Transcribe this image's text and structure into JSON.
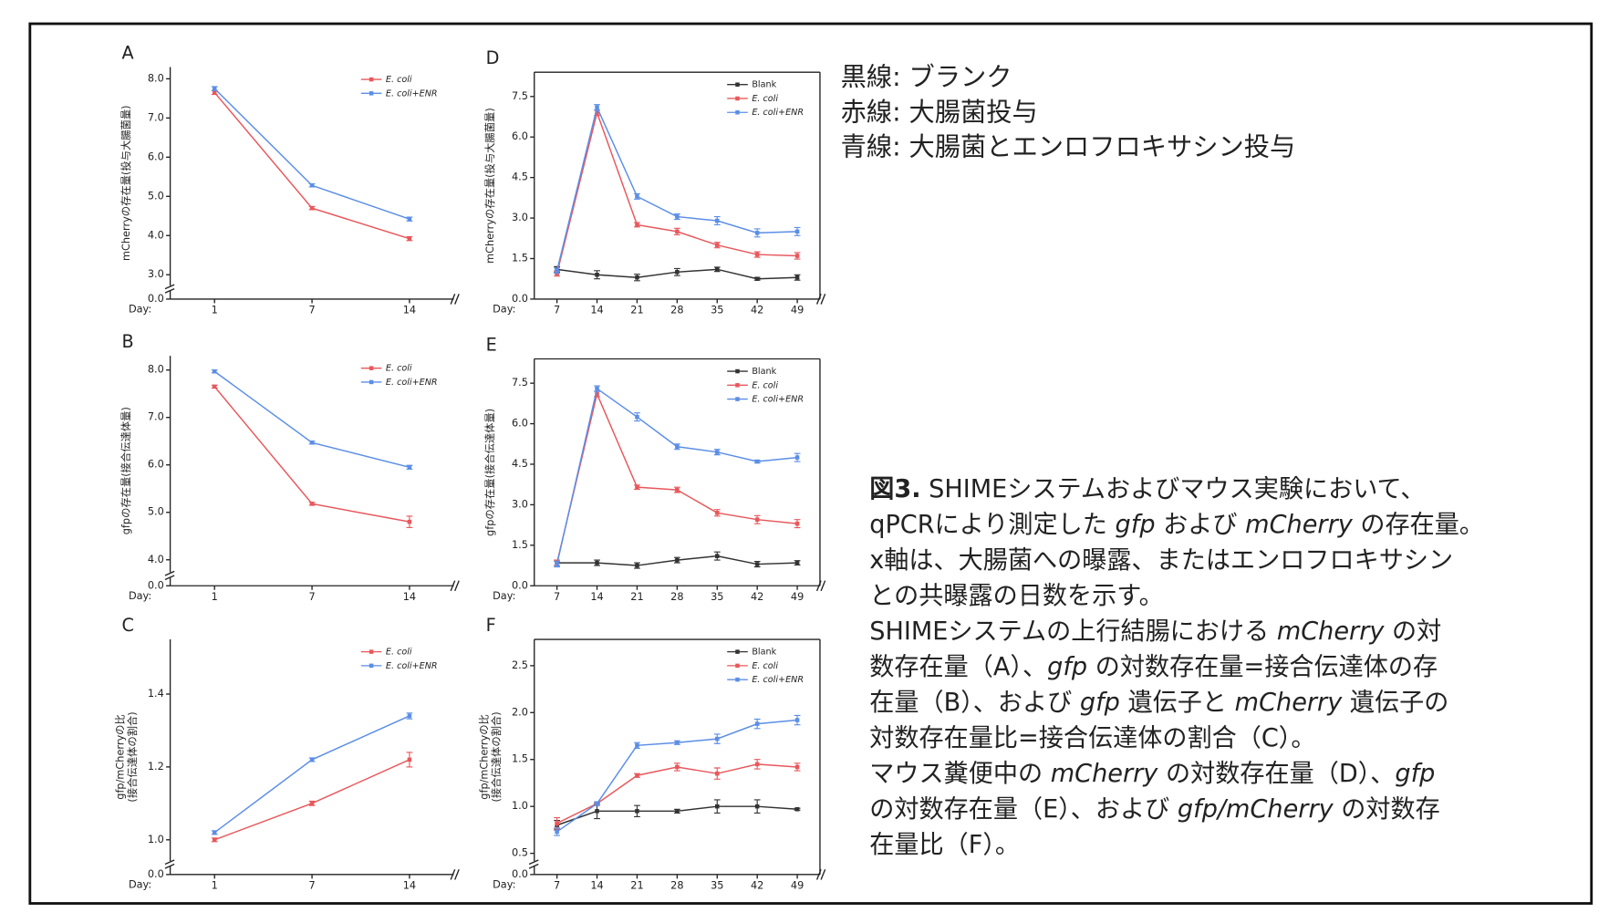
{
  "note": [
    "黒線: ブランク",
    "赤線: 大腸菌投与",
    "青線: 大腸菌とエンロフロキサシン投与"
  ],
  "caption": [
    [
      {
        "text": "図3.",
        "style": "bold"
      },
      {
        "text": " SHIMEシステムおよびマウス実験において、"
      }
    ],
    [
      {
        "text": "qPCRにより測定した "
      },
      {
        "text": "gfp",
        "style": "italic"
      },
      {
        "text": " および "
      },
      {
        "text": "mCherry",
        "style": "italic"
      },
      {
        "text": " の存在量。"
      }
    ],
    [
      {
        "text": "x軸は、大腸菌への曝露、またはエンロフロキサシン"
      }
    ],
    [
      {
        "text": "との共曝露の日数を示す。"
      }
    ],
    [
      {
        "text": "SHIMEシステムの上行結腸における "
      },
      {
        "text": "mCherry",
        "style": "italic"
      },
      {
        "text": " の対"
      }
    ],
    [
      {
        "text": "数存在量（A）、"
      },
      {
        "text": "gfp",
        "style": "italic"
      },
      {
        "text": " の対数存在量=接合伝達体の存"
      }
    ],
    [
      {
        "text": "在量（B）、および "
      },
      {
        "text": "gfp",
        "style": "italic"
      },
      {
        "text": " 遺伝子と "
      },
      {
        "text": "mCherry",
        "style": "italic"
      },
      {
        "text": " 遺伝子の"
      }
    ],
    [
      {
        "text": "対数存在量比=接合伝達体の割合（C）。"
      }
    ],
    [
      {
        "text": "マウス糞便中の "
      },
      {
        "text": "mCherry",
        "style": "italic"
      },
      {
        "text": " の対数存在量（D）、"
      },
      {
        "text": "gfp",
        "style": "italic"
      }
    ],
    [
      {
        "text": "の対数存在量（E）、および "
      },
      {
        "text": "gfp/mCherry",
        "style": "italic"
      },
      {
        "text": " の対数存"
      }
    ],
    [
      {
        "text": "在量比（F）。"
      }
    ]
  ],
  "chart_data": [
    {
      "type": "line",
      "panel": "A",
      "ylabel": [
        "mCherryの存在量(投与大腸菌量)"
      ],
      "xlabel": "Day:",
      "categories": [
        "1",
        "7",
        "14"
      ],
      "frame": "axes",
      "legend": "upper right",
      "ylim": [
        0,
        8.3
      ],
      "ybreak": 2.8,
      "yticks": [
        {
          "value": 0,
          "label": "0.0"
        },
        {
          "value": 3,
          "label": "3.0"
        },
        {
          "value": 4,
          "label": "4.0"
        },
        {
          "value": 5,
          "label": "5.0"
        },
        {
          "value": 6,
          "label": "6.0"
        },
        {
          "value": 7,
          "label": "7.0"
        },
        {
          "value": 8,
          "label": "8.0"
        }
      ],
      "series": [
        {
          "name": "E. coli",
          "italic": true,
          "color": "#e8585c",
          "values": [
            7.65,
            4.7,
            3.92
          ],
          "errors": [
            0.05,
            0.04,
            0.05
          ]
        },
        {
          "name": "E. coli+ENR",
          "italic": true,
          "color": "#5b8ee6",
          "values": [
            7.75,
            5.28,
            4.42
          ],
          "errors": [
            0.05,
            0.04,
            0.05
          ]
        }
      ]
    },
    {
      "type": "line",
      "panel": "B",
      "ylabel": [
        "gfpの存在量(接合伝達体量)"
      ],
      "xlabel": "Day:",
      "categories": [
        "1",
        "7",
        "14"
      ],
      "frame": "axes",
      "legend": "upper right",
      "ylim": [
        0,
        8.3
      ],
      "ybreak": 3.8,
      "yticks": [
        {
          "value": 0,
          "label": "0.0"
        },
        {
          "value": 4,
          "label": "4.0"
        },
        {
          "value": 5,
          "label": "5.0"
        },
        {
          "value": 6,
          "label": "6.0"
        },
        {
          "value": 7,
          "label": "7.0"
        },
        {
          "value": 8,
          "label": "8.0"
        }
      ],
      "series": [
        {
          "name": "E. coli",
          "italic": true,
          "color": "#e8585c",
          "values": [
            7.65,
            5.18,
            4.8
          ],
          "errors": [
            0.03,
            0.03,
            0.12
          ]
        },
        {
          "name": "E. coli+ENR",
          "italic": true,
          "color": "#5b8ee6",
          "values": [
            7.97,
            6.47,
            5.95
          ],
          "errors": [
            0.03,
            0.03,
            0.04
          ]
        }
      ]
    },
    {
      "type": "line",
      "panel": "C",
      "ylabel": [
        "gfp/mCherryの比",
        "(接合伝達体の割合)"
      ],
      "xlabel": "Day:",
      "categories": [
        "1",
        "7",
        "14"
      ],
      "frame": "axes",
      "legend": "upper right",
      "ylim": [
        0,
        1.55
      ],
      "ybreak": 0.95,
      "yticks": [
        {
          "value": 0,
          "label": "0.0"
        },
        {
          "value": 1,
          "label": "1.0"
        },
        {
          "value": 1.2,
          "label": "1.2"
        },
        {
          "value": 1.4,
          "label": "1.4"
        }
      ],
      "series": [
        {
          "name": "E. coli",
          "italic": true,
          "color": "#e8585c",
          "values": [
            1.0,
            1.1,
            1.22
          ],
          "errors": [
            0.005,
            0.006,
            0.02
          ]
        },
        {
          "name": "E. coli+ENR",
          "italic": true,
          "color": "#5b8ee6",
          "values": [
            1.02,
            1.22,
            1.34
          ],
          "errors": [
            0.005,
            0.005,
            0.008
          ]
        }
      ]
    },
    {
      "type": "line",
      "panel": "D",
      "ylabel": [
        "mCherryの存在量(投与大腸菌量)"
      ],
      "xlabel": "Day:",
      "categories": [
        "7",
        "14",
        "21",
        "28",
        "35",
        "42",
        "49"
      ],
      "frame": "box",
      "legend": "upper right",
      "ylim": [
        0,
        8.4
      ],
      "yticks": [
        {
          "value": 0,
          "label": "0.0"
        },
        1.5,
        {
          "value": 3,
          "label": "3.0"
        },
        4.5,
        {
          "value": 6,
          "label": "6.0"
        },
        7.5
      ],
      "series": [
        {
          "name": "Blank",
          "italic": false,
          "color": "#333333",
          "values": [
            1.1,
            0.9,
            0.8,
            1.0,
            1.1,
            0.75,
            0.8
          ],
          "errors": [
            0.1,
            0.15,
            0.12,
            0.13,
            0.08,
            0.05,
            0.1
          ]
        },
        {
          "name": "E. coli",
          "italic": true,
          "color": "#e8585c",
          "values": [
            0.95,
            6.9,
            2.75,
            2.5,
            2.0,
            1.65,
            1.6
          ],
          "errors": [
            0.1,
            0.1,
            0.08,
            0.12,
            0.1,
            0.1,
            0.12
          ]
        },
        {
          "name": "E. coli+ENR",
          "italic": true,
          "color": "#5b8ee6",
          "values": [
            1.05,
            7.1,
            3.8,
            3.05,
            2.9,
            2.45,
            2.5
          ],
          "errors": [
            0.1,
            0.1,
            0.1,
            0.1,
            0.15,
            0.15,
            0.15
          ]
        }
      ]
    },
    {
      "type": "line",
      "panel": "E",
      "ylabel": [
        "gfpの存在量(接合伝達体量)"
      ],
      "xlabel": "Day:",
      "categories": [
        "7",
        "14",
        "21",
        "28",
        "35",
        "42",
        "49"
      ],
      "frame": "box",
      "legend": "upper right",
      "ylim": [
        0,
        8.4
      ],
      "yticks": [
        {
          "value": 0,
          "label": "0.0"
        },
        1.5,
        {
          "value": 3,
          "label": "3.0"
        },
        4.5,
        {
          "value": 6,
          "label": "6.0"
        },
        7.5
      ],
      "series": [
        {
          "name": "Blank",
          "italic": false,
          "color": "#333333",
          "values": [
            0.85,
            0.85,
            0.75,
            0.95,
            1.1,
            0.8,
            0.85
          ],
          "errors": [
            0.1,
            0.1,
            0.1,
            0.1,
            0.15,
            0.1,
            0.08
          ]
        },
        {
          "name": "E. coli",
          "italic": true,
          "color": "#e8585c",
          "values": [
            0.85,
            7.1,
            3.65,
            3.55,
            2.7,
            2.45,
            2.3
          ],
          "errors": [
            0.1,
            0.1,
            0.08,
            0.1,
            0.12,
            0.15,
            0.15
          ]
        },
        {
          "name": "E. coli+ENR",
          "italic": true,
          "color": "#5b8ee6",
          "values": [
            0.8,
            7.3,
            6.25,
            5.15,
            4.95,
            4.6,
            4.75
          ],
          "errors": [
            0.1,
            0.1,
            0.15,
            0.1,
            0.1,
            0.05,
            0.15
          ]
        }
      ]
    },
    {
      "type": "line",
      "panel": "F",
      "ylabel": [
        "gfp/mCherryの比",
        "(接合伝達体の割合)"
      ],
      "xlabel": "Day:",
      "categories": [
        "7",
        "14",
        "21",
        "28",
        "35",
        "42",
        "49"
      ],
      "frame": "box",
      "legend": "upper right",
      "ylim": [
        0,
        2.78
      ],
      "ybreak": 0.45,
      "yticks": [
        {
          "value": 0,
          "label": "0.0"
        },
        0.5,
        {
          "value": 1,
          "label": "1.0"
        },
        1.5,
        {
          "value": 2,
          "label": "2.0"
        },
        2.5
      ],
      "series": [
        {
          "name": "Blank",
          "italic": false,
          "color": "#333333",
          "values": [
            0.8,
            0.95,
            0.95,
            0.95,
            1.0,
            1.0,
            0.97
          ],
          "errors": [
            0.05,
            0.08,
            0.06,
            0.02,
            0.07,
            0.07,
            0.01
          ]
        },
        {
          "name": "E. coli",
          "italic": true,
          "color": "#e8585c",
          "values": [
            0.82,
            1.03,
            1.33,
            1.42,
            1.35,
            1.45,
            1.42
          ],
          "errors": [
            0.06,
            0.02,
            0.02,
            0.04,
            0.06,
            0.05,
            0.04
          ]
        },
        {
          "name": "E. coli+ENR",
          "italic": true,
          "color": "#5b8ee6",
          "values": [
            0.73,
            1.03,
            1.65,
            1.68,
            1.72,
            1.88,
            1.92
          ],
          "errors": [
            0.04,
            0.02,
            0.03,
            0.02,
            0.05,
            0.05,
            0.05
          ]
        }
      ]
    }
  ]
}
